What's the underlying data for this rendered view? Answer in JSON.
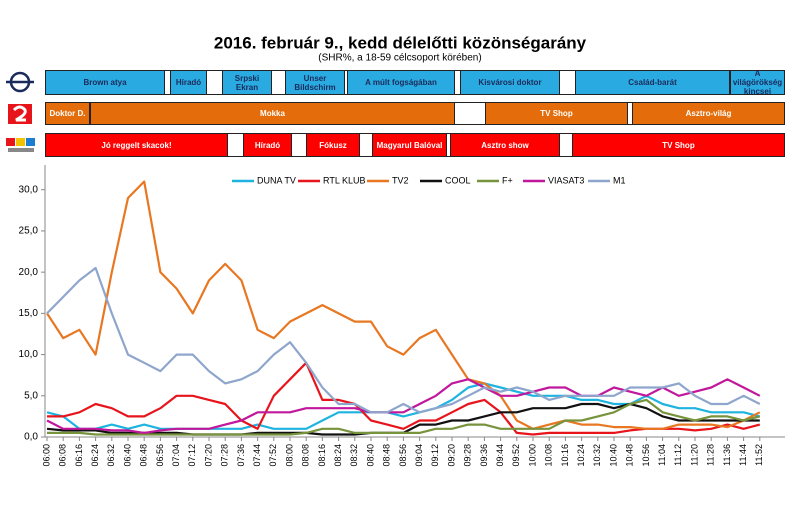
{
  "chart_data": {
    "type": "line",
    "title": "2016. február 9., kedd délelőtti közönségarány",
    "subtitle": "(SHR%, a 18-59 célcsoport körében)",
    "schedule": [
      {
        "color": "#29abe2",
        "blocks": [
          "Brown atya",
          "Híradó",
          "Srpski Ekran",
          "Unser Bildschirm",
          "A múlt fogságában",
          "Kisvárosi doktor",
          "Család-barát",
          "A világörökség kincsei"
        ]
      },
      {
        "color": "#e46c0a",
        "blocks": [
          "Doktor D.",
          "Mokka",
          "TV Shop",
          "Asztro-világ"
        ]
      },
      {
        "color": "#ff0000",
        "blocks": [
          "Jó reggelt skacok!",
          "Híradó",
          "Fókusz",
          "Magyarul Balóval",
          "Asztro show",
          "TV Shop"
        ]
      }
    ],
    "categories": [
      "06:00",
      "06:08",
      "06:16",
      "06:24",
      "06:32",
      "06:40",
      "06:48",
      "06:56",
      "07:04",
      "07:12",
      "07:20",
      "07:28",
      "07:36",
      "07:44",
      "07:52",
      "08:00",
      "08:08",
      "08:16",
      "08:24",
      "08:32",
      "08:40",
      "08:48",
      "08:56",
      "09:04",
      "09:12",
      "09:20",
      "09:28",
      "09:36",
      "09:44",
      "09:52",
      "10:00",
      "10:08",
      "10:16",
      "10:24",
      "10:32",
      "10:40",
      "10:48",
      "10:56",
      "11:04",
      "11:12",
      "11:20",
      "11:28",
      "11:36",
      "11:44",
      "11:52"
    ],
    "ylim": [
      0,
      33
    ],
    "yticks": [
      {
        "value": 0,
        "label": "0,0"
      },
      {
        "value": 5,
        "label": "5,0"
      },
      {
        "value": 10,
        "label": "10,0"
      },
      {
        "value": 15,
        "label": "15,0"
      },
      {
        "value": 20,
        "label": "20,0"
      },
      {
        "value": 25,
        "label": "25,0"
      },
      {
        "value": 30,
        "label": "30,0"
      }
    ],
    "series": [
      {
        "name": "DUNA TV",
        "color": "#1fb3e0",
        "values": [
          3,
          2.5,
          1,
          1,
          1.5,
          1,
          1.5,
          1,
          1,
          1,
          1,
          1,
          1,
          1.5,
          1,
          1,
          1,
          2,
          3,
          3,
          3,
          3,
          2.5,
          3,
          3.5,
          4.5,
          6,
          6.5,
          6,
          5.5,
          5,
          5,
          5,
          4.5,
          4.5,
          4,
          4,
          5,
          4,
          3.5,
          3.5,
          3,
          3,
          3,
          2.5
        ]
      },
      {
        "name": "RTL KLUB",
        "color": "#e8141c",
        "values": [
          2.5,
          2.5,
          3,
          4,
          3.5,
          2.5,
          2.5,
          3.5,
          5,
          5,
          4.5,
          4,
          2,
          1,
          5,
          7,
          9,
          4.5,
          4.5,
          4,
          2,
          1.5,
          1,
          2,
          2,
          3,
          4,
          4.5,
          3,
          0.5,
          0.3,
          0.5,
          0.5,
          0.5,
          0.5,
          0.5,
          0.8,
          1,
          1,
          1,
          0.8,
          1,
          1.5,
          1,
          1.5
        ]
      },
      {
        "name": "TV2",
        "color": "#e87722",
        "values": [
          15,
          12,
          13,
          10,
          20,
          29,
          31,
          20,
          18,
          15,
          19,
          21,
          19,
          13,
          12,
          14,
          15,
          16,
          15,
          14,
          14,
          11,
          10,
          12,
          13,
          10,
          7,
          6.5,
          5,
          2,
          1,
          1.5,
          2,
          1.5,
          1.5,
          1.2,
          1.2,
          1,
          1,
          1.5,
          1.5,
          1.5,
          1.2,
          2,
          3
        ]
      },
      {
        "name": "COOL",
        "color": "#111111",
        "values": [
          1,
          0.8,
          0.8,
          0.8,
          0.5,
          0.5,
          0.5,
          0.5,
          0.5,
          0.3,
          0.3,
          0.3,
          0.3,
          0.5,
          0.5,
          0.5,
          0.5,
          0.3,
          0.3,
          0.3,
          0.5,
          0.5,
          0.5,
          1.5,
          1.5,
          2,
          2,
          2.5,
          3,
          3,
          3.5,
          3.5,
          3.5,
          4,
          4,
          3.5,
          4,
          3.5,
          2.5,
          2,
          2,
          2,
          2,
          2,
          2
        ]
      },
      {
        "name": "F+",
        "color": "#77933c",
        "values": [
          0.5,
          0.5,
          0.5,
          0.3,
          0.3,
          0.3,
          0.3,
          0.3,
          0.3,
          0.3,
          0.3,
          0.3,
          0.3,
          0.3,
          0.3,
          0.3,
          0.5,
          1,
          1,
          0.5,
          0.5,
          0.5,
          0.5,
          0.5,
          1,
          1,
          1.5,
          1.5,
          1,
          1,
          1,
          1,
          2,
          2,
          2.5,
          3,
          4,
          4.5,
          3,
          2.5,
          2,
          2.5,
          2.5,
          2,
          2.5
        ]
      },
      {
        "name": "VIASAT3",
        "color": "#c0179c",
        "values": [
          2,
          1,
          1,
          1,
          0.8,
          0.8,
          0.5,
          0.8,
          1,
          1,
          1,
          1.5,
          2,
          3,
          3,
          3,
          3.5,
          3.5,
          3.5,
          3.5,
          3,
          3,
          3,
          4,
          5,
          6.5,
          7,
          6,
          5,
          5,
          5.5,
          6,
          6,
          5,
          5,
          6,
          5.5,
          5,
          6,
          5,
          5.5,
          6,
          7,
          6,
          5
        ]
      },
      {
        "name": "M1",
        "color": "#8ea5cc",
        "values": [
          15,
          17,
          19,
          20.5,
          15,
          10,
          9,
          8,
          10,
          10,
          8,
          6.5,
          7,
          8,
          10,
          11.5,
          9,
          6,
          4,
          4,
          3,
          3,
          4,
          3,
          3.5,
          4,
          5,
          6,
          5.5,
          6,
          5.5,
          4.5,
          5,
          5,
          5,
          5,
          6,
          6,
          6,
          6.5,
          5,
          4,
          4,
          5,
          4
        ]
      }
    ]
  }
}
